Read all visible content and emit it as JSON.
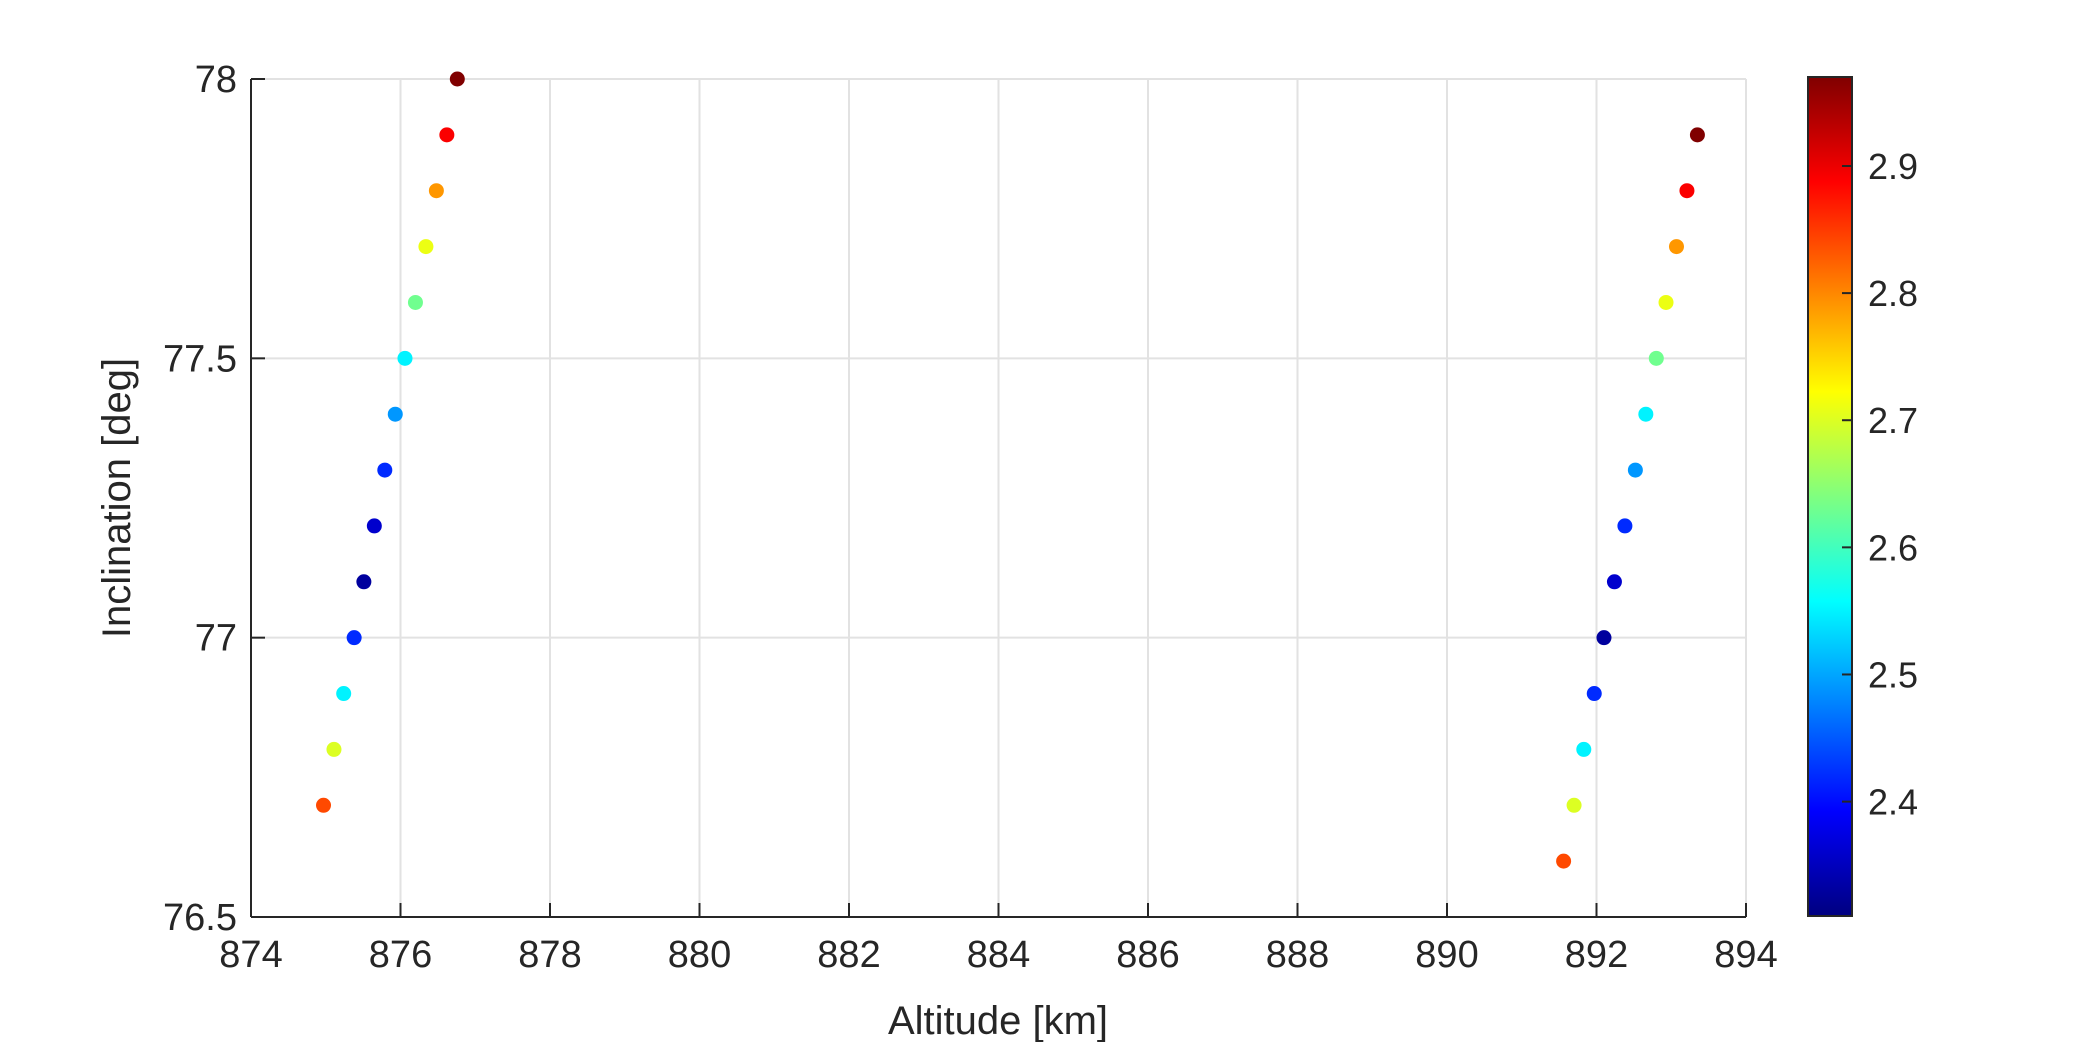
{
  "chart_data": {
    "type": "scatter",
    "title": "",
    "xlabel": "Altitude [km]",
    "ylabel": "Inclination [deg]",
    "xlim": [
      874,
      894
    ],
    "ylim": [
      76.5,
      78
    ],
    "xticks": [
      "874",
      "876",
      "878",
      "880",
      "882",
      "884",
      "886",
      "888",
      "890",
      "892",
      "894"
    ],
    "yticks": [
      "76.5",
      "77",
      "77.5",
      "78"
    ],
    "grid": true,
    "colormap": "jet",
    "colorbar": {
      "range": [
        2.31,
        2.97
      ],
      "ticks": [
        "2.4",
        "2.5",
        "2.6",
        "2.7",
        "2.8",
        "2.9"
      ],
      "tick_values": [
        2.4,
        2.5,
        2.6,
        2.7,
        2.8,
        2.9
      ]
    },
    "points": [
      {
        "x": 874.97,
        "y": 76.7,
        "c": 2.84
      },
      {
        "x": 875.11,
        "y": 76.8,
        "c": 2.7
      },
      {
        "x": 875.24,
        "y": 76.9,
        "c": 2.55
      },
      {
        "x": 875.38,
        "y": 77.0,
        "c": 2.42
      },
      {
        "x": 875.51,
        "y": 77.1,
        "c": 2.33
      },
      {
        "x": 875.65,
        "y": 77.2,
        "c": 2.36
      },
      {
        "x": 875.79,
        "y": 77.3,
        "c": 2.42
      },
      {
        "x": 875.93,
        "y": 77.4,
        "c": 2.49
      },
      {
        "x": 876.06,
        "y": 77.5,
        "c": 2.55
      },
      {
        "x": 876.2,
        "y": 77.6,
        "c": 2.63
      },
      {
        "x": 876.34,
        "y": 77.7,
        "c": 2.71
      },
      {
        "x": 876.48,
        "y": 77.8,
        "c": 2.79
      },
      {
        "x": 876.62,
        "y": 77.9,
        "c": 2.89
      },
      {
        "x": 876.76,
        "y": 78.0,
        "c": 2.97
      },
      {
        "x": 891.56,
        "y": 76.6,
        "c": 2.84
      },
      {
        "x": 891.7,
        "y": 76.7,
        "c": 2.7
      },
      {
        "x": 891.83,
        "y": 76.8,
        "c": 2.55
      },
      {
        "x": 891.97,
        "y": 76.9,
        "c": 2.42
      },
      {
        "x": 892.1,
        "y": 77.0,
        "c": 2.33
      },
      {
        "x": 892.24,
        "y": 77.1,
        "c": 2.36
      },
      {
        "x": 892.38,
        "y": 77.2,
        "c": 2.42
      },
      {
        "x": 892.52,
        "y": 77.3,
        "c": 2.49
      },
      {
        "x": 892.66,
        "y": 77.4,
        "c": 2.55
      },
      {
        "x": 892.8,
        "y": 77.5,
        "c": 2.63
      },
      {
        "x": 892.93,
        "y": 77.6,
        "c": 2.71
      },
      {
        "x": 893.07,
        "y": 77.7,
        "c": 2.79
      },
      {
        "x": 893.21,
        "y": 77.8,
        "c": 2.89
      },
      {
        "x": 893.35,
        "y": 77.9,
        "c": 2.97
      }
    ]
  }
}
